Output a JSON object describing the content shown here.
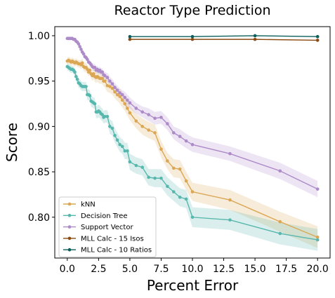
{
  "chart_data": {
    "type": "line",
    "title": "Reactor Type Prediction",
    "xlabel": "Percent Error",
    "ylabel": "Score",
    "xlim": [
      -1.0,
      21.0
    ],
    "ylim": [
      0.755,
      1.01
    ],
    "xticks": [
      0.0,
      2.5,
      5.0,
      7.5,
      10.0,
      12.5,
      15.0,
      17.5,
      20.0
    ],
    "xtick_labels": [
      "0.0",
      "2.5",
      "5.0",
      "7.5",
      "10.0",
      "12.5",
      "15.0",
      "17.5",
      "20.0"
    ],
    "yticks": [
      0.8,
      0.85,
      0.9,
      0.95,
      1.0
    ],
    "ytick_labels": [
      "0.80",
      "0.85",
      "0.90",
      "0.95",
      "1.00"
    ],
    "legend_position": "bottom-left",
    "grid": false,
    "series": [
      {
        "name": "kNN",
        "color": "#dba754",
        "band": true,
        "x": [
          0.0,
          0.1,
          0.2,
          0.3,
          0.4,
          0.5,
          0.6,
          0.7,
          0.8,
          0.9,
          1.0,
          1.1,
          1.2,
          1.3,
          1.4,
          1.5,
          1.6,
          1.7,
          1.8,
          1.9,
          2.0,
          2.1,
          2.2,
          2.3,
          2.4,
          2.5,
          2.6,
          2.7,
          2.8,
          2.9,
          3.0,
          3.2,
          3.4,
          3.6,
          3.8,
          4.0,
          4.2,
          4.4,
          4.6,
          4.8,
          5.0,
          5.5,
          6.0,
          6.5,
          7.0,
          7.5,
          8.0,
          8.5,
          9.0,
          9.5,
          10.0,
          13.0,
          17.0,
          20.0
        ],
        "y": [
          0.972,
          0.973,
          0.972,
          0.971,
          0.972,
          0.971,
          0.97,
          0.971,
          0.97,
          0.969,
          0.969,
          0.968,
          0.97,
          0.966,
          0.965,
          0.965,
          0.963,
          0.96,
          0.962,
          0.958,
          0.956,
          0.958,
          0.955,
          0.954,
          0.955,
          0.954,
          0.953,
          0.953,
          0.953,
          0.95,
          0.95,
          0.945,
          0.944,
          0.942,
          0.938,
          0.935,
          0.933,
          0.929,
          0.925,
          0.92,
          0.915,
          0.906,
          0.9,
          0.896,
          0.893,
          0.875,
          0.862,
          0.854,
          0.853,
          0.84,
          0.828,
          0.819,
          0.795,
          0.778
        ],
        "ci": [
          0.004,
          0.004,
          0.004,
          0.004,
          0.004,
          0.004,
          0.004,
          0.004,
          0.004,
          0.004,
          0.004,
          0.005,
          0.005,
          0.005,
          0.005,
          0.005,
          0.005,
          0.005,
          0.005,
          0.005,
          0.006,
          0.006,
          0.006,
          0.006,
          0.006,
          0.006,
          0.006,
          0.006,
          0.006,
          0.006,
          0.007,
          0.007,
          0.007,
          0.007,
          0.007,
          0.007,
          0.008,
          0.008,
          0.008,
          0.008,
          0.008,
          0.008,
          0.009,
          0.009,
          0.009,
          0.009,
          0.009,
          0.01,
          0.01,
          0.01,
          0.01,
          0.011,
          0.011,
          0.012
        ]
      },
      {
        "name": "Decision Tree",
        "color": "#57b7ad",
        "band": true,
        "x": [
          0.0,
          0.1,
          0.2,
          0.3,
          0.4,
          0.5,
          0.6,
          0.7,
          0.8,
          0.9,
          1.0,
          1.1,
          1.2,
          1.3,
          1.4,
          1.5,
          1.6,
          1.7,
          1.8,
          1.9,
          2.0,
          2.1,
          2.2,
          2.3,
          2.4,
          2.5,
          2.6,
          2.7,
          2.8,
          2.9,
          3.0,
          3.2,
          3.4,
          3.6,
          3.8,
          4.0,
          4.2,
          4.4,
          4.6,
          4.8,
          5.0,
          5.5,
          6.0,
          6.5,
          7.0,
          7.5,
          8.0,
          8.5,
          9.0,
          9.5,
          10.0,
          13.0,
          17.0,
          20.0
        ],
        "y": [
          0.966,
          0.965,
          0.964,
          0.963,
          0.963,
          0.962,
          0.96,
          0.955,
          0.952,
          0.948,
          0.947,
          0.945,
          0.944,
          0.944,
          0.944,
          0.944,
          0.935,
          0.935,
          0.934,
          0.928,
          0.927,
          0.926,
          0.925,
          0.916,
          0.916,
          0.917,
          0.916,
          0.914,
          0.913,
          0.91,
          0.911,
          0.911,
          0.9,
          0.898,
          0.89,
          0.885,
          0.88,
          0.878,
          0.873,
          0.873,
          0.861,
          0.857,
          0.855,
          0.844,
          0.843,
          0.843,
          0.834,
          0.828,
          0.822,
          0.82,
          0.8,
          0.797,
          0.782,
          0.775
        ],
        "ci": [
          0.004,
          0.004,
          0.004,
          0.004,
          0.004,
          0.004,
          0.004,
          0.005,
          0.005,
          0.005,
          0.005,
          0.005,
          0.005,
          0.005,
          0.005,
          0.005,
          0.006,
          0.006,
          0.006,
          0.006,
          0.006,
          0.006,
          0.006,
          0.007,
          0.007,
          0.007,
          0.007,
          0.007,
          0.007,
          0.007,
          0.007,
          0.007,
          0.008,
          0.008,
          0.008,
          0.008,
          0.008,
          0.008,
          0.009,
          0.009,
          0.009,
          0.009,
          0.009,
          0.009,
          0.01,
          0.01,
          0.01,
          0.01,
          0.01,
          0.01,
          0.011,
          0.011,
          0.012,
          0.012
        ]
      },
      {
        "name": "Support Vector",
        "color": "#ad8ac8",
        "band": true,
        "x": [
          0.0,
          0.1,
          0.2,
          0.3,
          0.4,
          0.5,
          0.6,
          0.7,
          0.8,
          0.9,
          1.0,
          1.1,
          1.2,
          1.3,
          1.4,
          1.5,
          1.6,
          1.7,
          1.8,
          1.9,
          2.0,
          2.1,
          2.2,
          2.3,
          2.4,
          2.5,
          2.6,
          2.7,
          2.8,
          2.9,
          3.0,
          3.2,
          3.4,
          3.6,
          3.8,
          4.0,
          4.2,
          4.4,
          4.6,
          4.8,
          5.0,
          5.5,
          6.0,
          6.5,
          7.0,
          7.5,
          8.0,
          8.5,
          9.0,
          9.5,
          10.0,
          13.0,
          17.0,
          20.0
        ],
        "y": [
          0.997,
          0.997,
          0.997,
          0.997,
          0.997,
          0.996,
          0.996,
          0.994,
          0.993,
          0.991,
          0.988,
          0.985,
          0.982,
          0.98,
          0.977,
          0.976,
          0.974,
          0.971,
          0.97,
          0.968,
          0.966,
          0.965,
          0.965,
          0.962,
          0.963,
          0.961,
          0.962,
          0.96,
          0.96,
          0.957,
          0.956,
          0.954,
          0.95,
          0.947,
          0.943,
          0.94,
          0.937,
          0.935,
          0.932,
          0.929,
          0.926,
          0.92,
          0.916,
          0.913,
          0.909,
          0.91,
          0.903,
          0.893,
          0.889,
          0.884,
          0.88,
          0.87,
          0.851,
          0.831
        ],
        "ci": [
          0.002,
          0.002,
          0.002,
          0.002,
          0.002,
          0.002,
          0.002,
          0.002,
          0.002,
          0.003,
          0.003,
          0.003,
          0.003,
          0.003,
          0.003,
          0.003,
          0.003,
          0.003,
          0.003,
          0.003,
          0.004,
          0.004,
          0.004,
          0.004,
          0.004,
          0.004,
          0.004,
          0.004,
          0.004,
          0.004,
          0.004,
          0.005,
          0.005,
          0.005,
          0.005,
          0.005,
          0.005,
          0.005,
          0.006,
          0.006,
          0.006,
          0.006,
          0.006,
          0.007,
          0.007,
          0.007,
          0.007,
          0.007,
          0.008,
          0.008,
          0.008,
          0.008,
          0.009,
          0.009
        ]
      },
      {
        "name": "MLL Calc - 15 Isos",
        "color": "#8a4a10",
        "band": false,
        "x": [
          5.0,
          10.0,
          15.0,
          20.0
        ],
        "y": [
          0.996,
          0.996,
          0.996,
          0.995
        ],
        "ci": [
          0,
          0,
          0,
          0
        ]
      },
      {
        "name": "MLL Calc - 10 Ratios",
        "color": "#0b5e5a",
        "band": false,
        "x": [
          5.0,
          10.0,
          15.0,
          20.0
        ],
        "y": [
          0.999,
          0.999,
          1.0,
          0.999
        ],
        "ci": [
          0,
          0,
          0,
          0
        ]
      }
    ]
  }
}
